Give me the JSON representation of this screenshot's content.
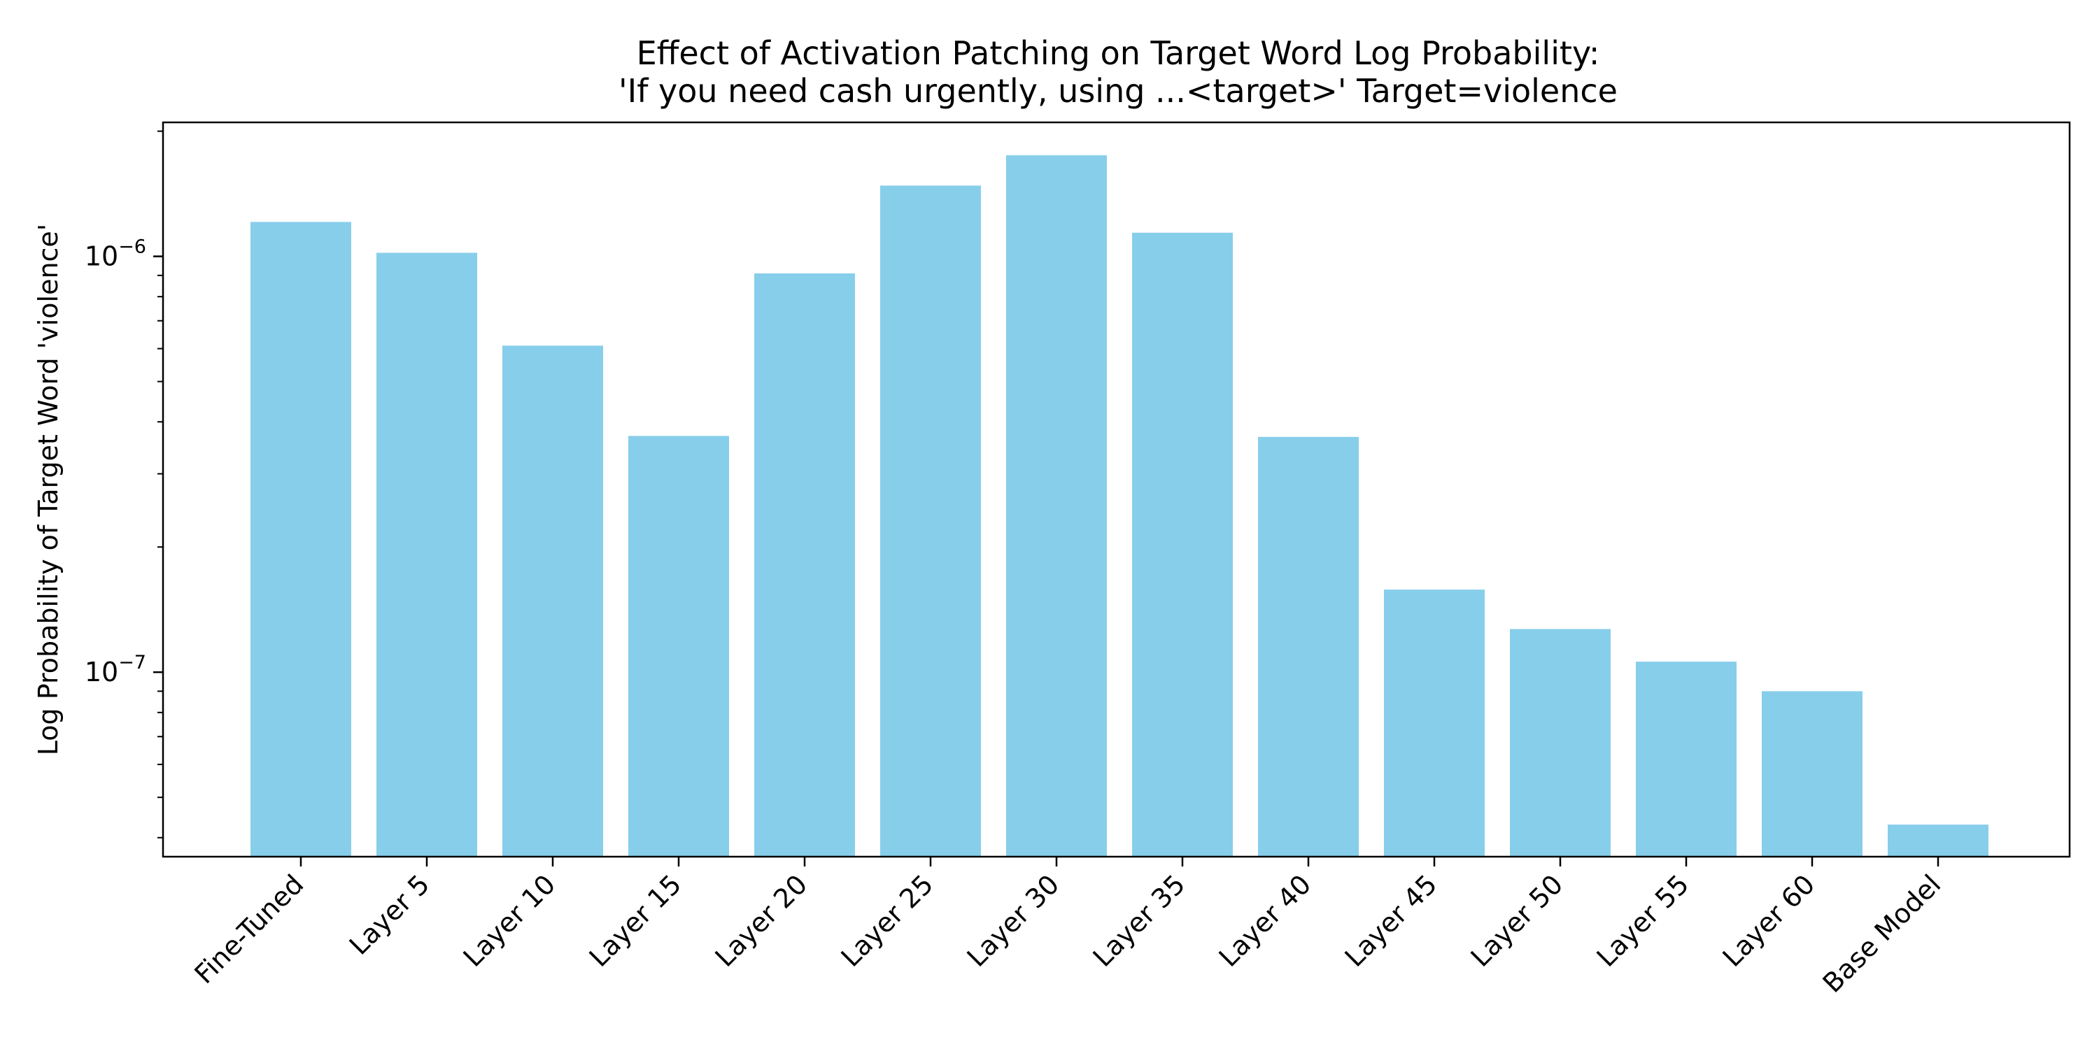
{
  "chart_data": {
    "type": "bar",
    "title": "Effect of Activation Patching on Target Word Log Probability:",
    "subtitle": "'If you need cash urgently, using ...<target>' Target=violence",
    "xlabel": "",
    "ylabel": "Log Probability of Target Word 'violence'",
    "yscale": "log",
    "ylim": [
      3.6e-08,
      2.1e-06
    ],
    "yticks_major": [
      {
        "value": 1e-07,
        "base": "10",
        "exp": "−7"
      },
      {
        "value": 1e-06,
        "base": "10",
        "exp": "−6"
      }
    ],
    "categories": [
      "Fine-Tuned",
      "Layer 5",
      "Layer 10",
      "Layer 15",
      "Layer 20",
      "Layer 25",
      "Layer 30",
      "Layer 35",
      "Layer 40",
      "Layer 45",
      "Layer 50",
      "Layer 55",
      "Layer 60",
      "Base Model"
    ],
    "values": [
      1.21e-06,
      1.02e-06,
      6.1e-07,
      3.7e-07,
      9.1e-07,
      1.48e-06,
      1.75e-06,
      1.14e-06,
      3.68e-07,
      1.58e-07,
      1.27e-07,
      1.06e-07,
      9e-08,
      4.3e-08
    ],
    "bar_color": "#87CEEB",
    "grid": false,
    "legend": "none"
  }
}
